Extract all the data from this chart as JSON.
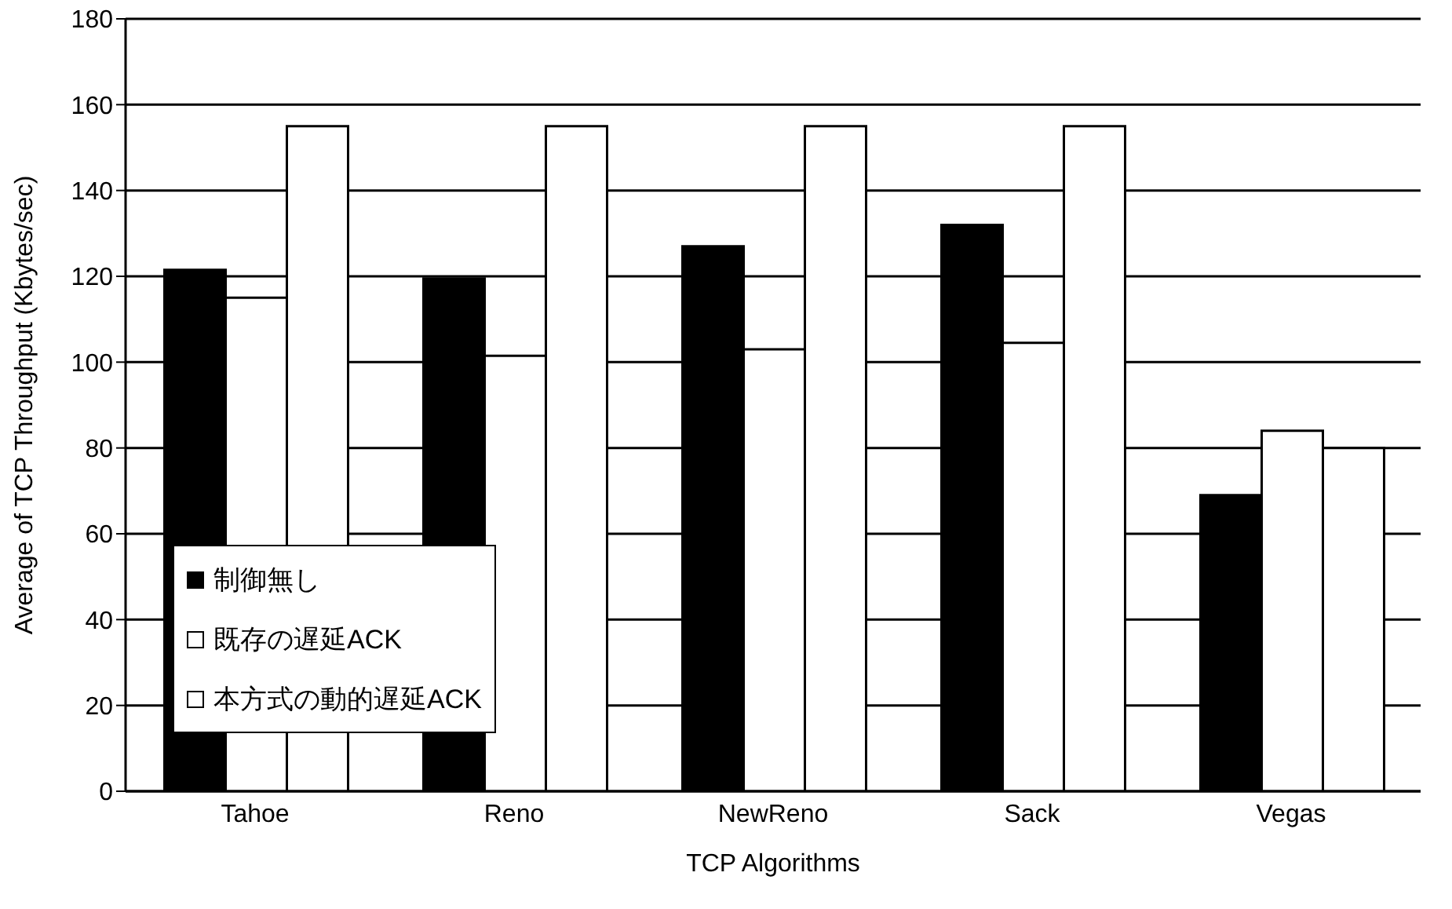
{
  "chart_data": {
    "type": "bar",
    "xlabel": "TCP Algorithms",
    "ylabel": "Average of TCP Throughput (Kbytes/sec)",
    "categories": [
      "Tahoe",
      "Reno",
      "NewReno",
      "Sack",
      "Vegas"
    ],
    "series": [
      {
        "name": "制御無し",
        "color": "#000000",
        "values": [
          121.5,
          119.5,
          127,
          132,
          69
        ]
      },
      {
        "name": "既存の遅延ACK",
        "color": "#ffffff",
        "values": [
          115,
          101.5,
          103,
          104.5,
          84
        ]
      },
      {
        "name": "本方式の動的遅延ACK",
        "color": "#ffffff",
        "values": [
          155,
          155,
          155,
          155,
          80
        ]
      }
    ],
    "ylim": [
      0,
      180
    ],
    "yticks": [
      0,
      20,
      40,
      60,
      80,
      100,
      120,
      140,
      160,
      180
    ],
    "grid": "y",
    "legend": "bottom left"
  }
}
